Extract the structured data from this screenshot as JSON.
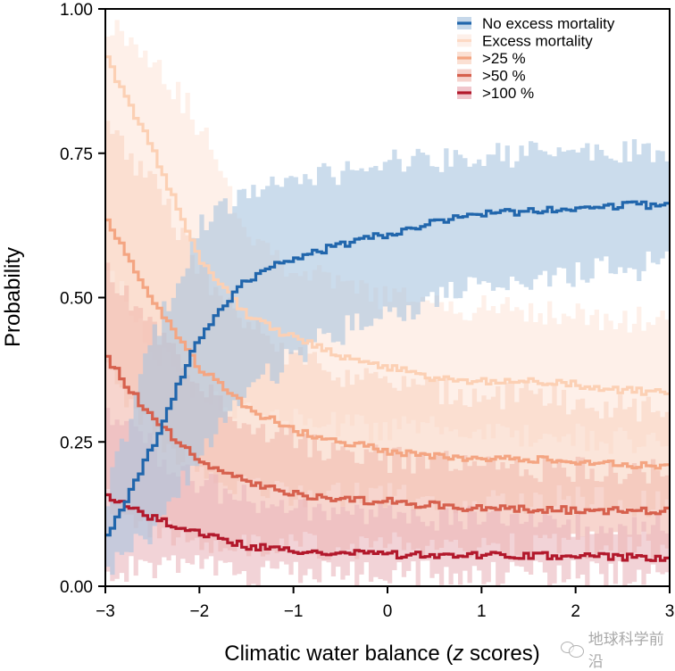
{
  "chart_data": {
    "type": "line",
    "title": "",
    "xlabel": "Climatic water balance (z scores)",
    "xlabel_parts": [
      "Climatic water balance (",
      "z",
      " scores)"
    ],
    "ylabel": "Probability",
    "xlim": [
      -3,
      3
    ],
    "ylim": [
      0,
      1
    ],
    "xticks": [
      -3,
      -2,
      -1,
      0,
      1,
      2,
      3
    ],
    "xtick_labels": [
      "−3",
      "−2",
      "−1",
      "0",
      "1",
      "2",
      "3"
    ],
    "yticks": [
      0,
      0.25,
      0.5,
      0.75,
      1.0
    ],
    "ytick_labels": [
      "0.00",
      "0.25",
      "0.50",
      "0.75",
      "1.00"
    ],
    "grid": false,
    "legend_position": "top-right",
    "x": [
      -3,
      -2.5,
      -2,
      -1.5,
      -1,
      -0.5,
      0,
      0.5,
      1,
      1.5,
      2,
      2.5,
      3
    ],
    "series": [
      {
        "name": "Excess mortality",
        "line_color": "#fcd0b4",
        "band_color": "#fde6da",
        "values": [
          0.92,
          0.76,
          0.57,
          0.47,
          0.43,
          0.4,
          0.38,
          0.36,
          0.355,
          0.355,
          0.35,
          0.34,
          0.335
        ],
        "lower": [
          0.55,
          0.42,
          0.33,
          0.3,
          0.29,
          0.28,
          0.27,
          0.27,
          0.26,
          0.26,
          0.26,
          0.25,
          0.25
        ],
        "upper": [
          0.98,
          0.92,
          0.8,
          0.62,
          0.55,
          0.52,
          0.5,
          0.49,
          0.48,
          0.48,
          0.47,
          0.46,
          0.46
        ]
      },
      {
        "name": ">25 %",
        "line_color": "#f4a582",
        "band_color": "#f9d3c1",
        "values": [
          0.64,
          0.5,
          0.38,
          0.31,
          0.27,
          0.25,
          0.235,
          0.225,
          0.22,
          0.22,
          0.215,
          0.21,
          0.21
        ],
        "lower": [
          0.38,
          0.27,
          0.2,
          0.17,
          0.16,
          0.16,
          0.155,
          0.15,
          0.15,
          0.15,
          0.15,
          0.145,
          0.145
        ],
        "upper": [
          0.8,
          0.7,
          0.55,
          0.45,
          0.4,
          0.37,
          0.35,
          0.34,
          0.33,
          0.33,
          0.32,
          0.31,
          0.31
        ]
      },
      {
        "name": ">50 %",
        "line_color": "#d6604d",
        "band_color": "#f1b9ae",
        "values": [
          0.4,
          0.29,
          0.22,
          0.18,
          0.16,
          0.15,
          0.147,
          0.14,
          0.135,
          0.133,
          0.132,
          0.13,
          0.13
        ],
        "lower": [
          0.15,
          0.1,
          0.07,
          0.07,
          0.07,
          0.07,
          0.07,
          0.07,
          0.07,
          0.07,
          0.07,
          0.07,
          0.07
        ],
        "upper": [
          0.55,
          0.45,
          0.34,
          0.28,
          0.25,
          0.23,
          0.22,
          0.21,
          0.21,
          0.2,
          0.2,
          0.2,
          0.2
        ]
      },
      {
        "name": ">100 %",
        "line_color": "#b2182b",
        "band_color": "#eab5bd",
        "values": [
          0.155,
          0.12,
          0.09,
          0.07,
          0.06,
          0.058,
          0.055,
          0.054,
          0.054,
          0.053,
          0.052,
          0.051,
          0.05
        ],
        "lower": [
          0.03,
          0.03,
          0.03,
          0.02,
          0.02,
          0.02,
          0.02,
          0.02,
          0.02,
          0.02,
          0.02,
          0.02,
          0.02
        ],
        "upper": [
          0.3,
          0.24,
          0.18,
          0.15,
          0.13,
          0.12,
          0.12,
          0.115,
          0.115,
          0.11,
          0.11,
          0.11,
          0.11
        ]
      },
      {
        "name": "No excess mortality",
        "line_color": "#2166ac",
        "band_color": "#a9c4df",
        "values": [
          0.08,
          0.24,
          0.43,
          0.53,
          0.57,
          0.59,
          0.61,
          0.63,
          0.645,
          0.65,
          0.655,
          0.66,
          0.66
        ],
        "lower": [
          0.03,
          0.1,
          0.22,
          0.33,
          0.4,
          0.44,
          0.47,
          0.5,
          0.52,
          0.53,
          0.54,
          0.55,
          0.56
        ],
        "upper": [
          0.15,
          0.42,
          0.62,
          0.68,
          0.71,
          0.72,
          0.73,
          0.74,
          0.745,
          0.75,
          0.75,
          0.75,
          0.75
        ]
      }
    ],
    "legend": [
      {
        "label": "No excess mortality",
        "line_color": "#2166ac",
        "band_color": "#c6d8ea"
      },
      {
        "label": "Excess mortality",
        "line_color": "#fdd9c4",
        "band_color": "#fdf0ea"
      },
      {
        "label": ">25 %",
        "line_color": "#f4a582",
        "band_color": "#fbe0d3"
      },
      {
        "label": ">50 %",
        "line_color": "#d6604d",
        "band_color": "#f6d2cc"
      },
      {
        "label": ">100 %",
        "line_color": "#b2182b",
        "band_color": "#f0c6cc"
      }
    ]
  },
  "watermark": {
    "icon": "wechat-icon",
    "text": "地球科学前沿"
  }
}
